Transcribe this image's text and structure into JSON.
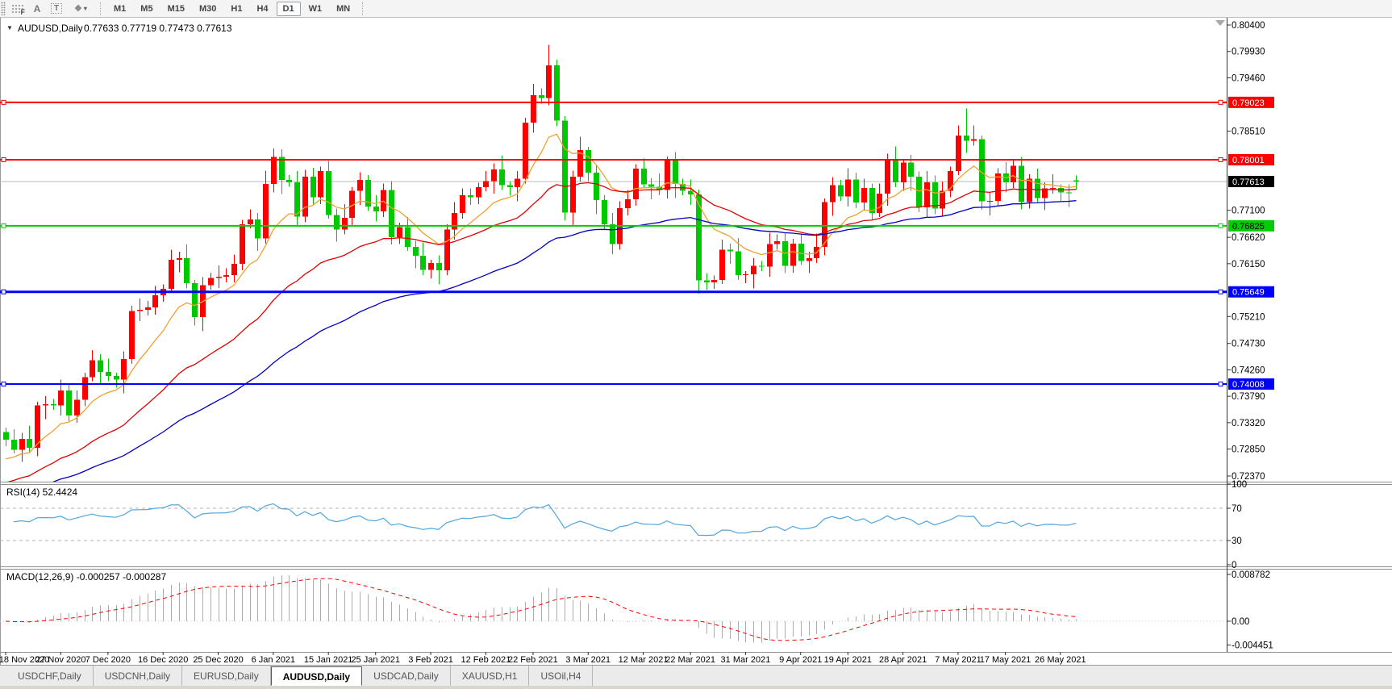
{
  "toolbar": {
    "tool_glyphs": {
      "fibonacci": "F",
      "text": "A",
      "text_label": "T",
      "arrows": "❖",
      "dropdown_caret": "▾"
    },
    "timeframes": [
      "M1",
      "M5",
      "M15",
      "M30",
      "H1",
      "H4",
      "D1",
      "W1",
      "MN"
    ],
    "active_timeframe": "D1"
  },
  "chart_header": {
    "collapse_glyph": "▼",
    "symbol": "AUDUSD,Daily",
    "ohlc": "0.77633 0.77719 0.77473 0.77613"
  },
  "chart_data": {
    "type": "candlestick",
    "symbol": "AUDUSD",
    "timeframe": "Daily",
    "bull_color": "#FF0000",
    "bear_color": "#00C800",
    "ylim": [
      0.7237,
      0.804
    ],
    "grid": false,
    "ohlc": [
      [
        0.7315,
        0.7323,
        0.729,
        0.7302
      ],
      [
        0.7302,
        0.732,
        0.7277,
        0.7284
      ],
      [
        0.7284,
        0.7314,
        0.7262,
        0.7303
      ],
      [
        0.7303,
        0.7327,
        0.7278,
        0.7287
      ],
      [
        0.7287,
        0.7369,
        0.7272,
        0.7363
      ],
      [
        0.7363,
        0.7379,
        0.7338,
        0.7365
      ],
      [
        0.7365,
        0.7374,
        0.7355,
        0.7363
      ],
      [
        0.7363,
        0.7409,
        0.7345,
        0.7389
      ],
      [
        0.7389,
        0.7401,
        0.7335,
        0.7345
      ],
      [
        0.7345,
        0.7389,
        0.7332,
        0.7373
      ],
      [
        0.7373,
        0.7421,
        0.7361,
        0.7413
      ],
      [
        0.7413,
        0.7461,
        0.7406,
        0.7443
      ],
      [
        0.7443,
        0.7454,
        0.74,
        0.7422
      ],
      [
        0.7422,
        0.7446,
        0.7406,
        0.7415
      ],
      [
        0.7415,
        0.7421,
        0.7394,
        0.7409
      ],
      [
        0.7409,
        0.7459,
        0.7384,
        0.7445
      ],
      [
        0.7445,
        0.754,
        0.7437,
        0.7531
      ],
      [
        0.7531,
        0.7553,
        0.7513,
        0.7533
      ],
      [
        0.7533,
        0.7549,
        0.7523,
        0.7537
      ],
      [
        0.7537,
        0.7575,
        0.7524,
        0.7559
      ],
      [
        0.7559,
        0.7578,
        0.7547,
        0.757
      ],
      [
        0.757,
        0.764,
        0.7563,
        0.7622
      ],
      [
        0.7622,
        0.7636,
        0.76,
        0.7625
      ],
      [
        0.7625,
        0.7649,
        0.7571,
        0.758
      ],
      [
        0.758,
        0.7586,
        0.7505,
        0.752
      ],
      [
        0.752,
        0.7591,
        0.7495,
        0.7577
      ],
      [
        0.7577,
        0.7599,
        0.7569,
        0.759
      ],
      [
        0.759,
        0.7612,
        0.7572,
        0.7592
      ],
      [
        0.7592,
        0.7607,
        0.7582,
        0.7595
      ],
      [
        0.7595,
        0.7631,
        0.7582,
        0.7615
      ],
      [
        0.7615,
        0.7693,
        0.7603,
        0.7685
      ],
      [
        0.7685,
        0.7712,
        0.7678,
        0.7694
      ],
      [
        0.7694,
        0.7705,
        0.7638,
        0.766
      ],
      [
        0.766,
        0.7781,
        0.7651,
        0.7757
      ],
      [
        0.7757,
        0.782,
        0.7742,
        0.7805
      ],
      [
        0.7805,
        0.7819,
        0.7739,
        0.7764
      ],
      [
        0.7764,
        0.7773,
        0.7752,
        0.776
      ],
      [
        0.776,
        0.778,
        0.7681,
        0.7699
      ],
      [
        0.7699,
        0.7782,
        0.7689,
        0.777
      ],
      [
        0.777,
        0.7786,
        0.772,
        0.7733
      ],
      [
        0.7733,
        0.7788,
        0.7721,
        0.778
      ],
      [
        0.778,
        0.7798,
        0.7695,
        0.7702
      ],
      [
        0.7702,
        0.7713,
        0.7654,
        0.7676
      ],
      [
        0.7676,
        0.7721,
        0.7667,
        0.7697
      ],
      [
        0.7697,
        0.7751,
        0.7682,
        0.7745
      ],
      [
        0.7745,
        0.7778,
        0.772,
        0.7764
      ],
      [
        0.7764,
        0.7773,
        0.7709,
        0.7717
      ],
      [
        0.7717,
        0.7737,
        0.769,
        0.7708
      ],
      [
        0.7708,
        0.7758,
        0.7698,
        0.7746
      ],
      [
        0.7746,
        0.7762,
        0.7649,
        0.7662
      ],
      [
        0.7662,
        0.7688,
        0.765,
        0.768
      ],
      [
        0.768,
        0.7698,
        0.7638,
        0.7645
      ],
      [
        0.7645,
        0.7656,
        0.7607,
        0.7629
      ],
      [
        0.7629,
        0.7653,
        0.7595,
        0.7604
      ],
      [
        0.7604,
        0.7622,
        0.7589,
        0.7616
      ],
      [
        0.7616,
        0.763,
        0.7578,
        0.7603
      ],
      [
        0.7603,
        0.7685,
        0.7595,
        0.7676
      ],
      [
        0.7676,
        0.7725,
        0.7658,
        0.7705
      ],
      [
        0.7705,
        0.7749,
        0.7695,
        0.7737
      ],
      [
        0.7737,
        0.7749,
        0.772,
        0.7733
      ],
      [
        0.7733,
        0.7759,
        0.7721,
        0.7751
      ],
      [
        0.7751,
        0.778,
        0.7744,
        0.7762
      ],
      [
        0.7762,
        0.7794,
        0.774,
        0.7783
      ],
      [
        0.7783,
        0.7807,
        0.7746,
        0.7755
      ],
      [
        0.7755,
        0.7761,
        0.7736,
        0.7751
      ],
      [
        0.7751,
        0.778,
        0.7726,
        0.7766
      ],
      [
        0.7766,
        0.7875,
        0.7758,
        0.7866
      ],
      [
        0.7866,
        0.7935,
        0.7848,
        0.7915
      ],
      [
        0.7915,
        0.7927,
        0.79,
        0.791
      ],
      [
        0.791,
        0.8005,
        0.7897,
        0.7968
      ],
      [
        0.7968,
        0.7978,
        0.786,
        0.787
      ],
      [
        0.787,
        0.7878,
        0.7692,
        0.7706
      ],
      [
        0.7706,
        0.7781,
        0.7684,
        0.777
      ],
      [
        0.777,
        0.7841,
        0.7761,
        0.7817
      ],
      [
        0.7817,
        0.7823,
        0.7762,
        0.7777
      ],
      [
        0.7777,
        0.7791,
        0.7703,
        0.7728
      ],
      [
        0.7728,
        0.7737,
        0.7677,
        0.7685
      ],
      [
        0.7685,
        0.7705,
        0.7632,
        0.765
      ],
      [
        0.765,
        0.7726,
        0.764,
        0.7714
      ],
      [
        0.7714,
        0.7746,
        0.7701,
        0.773
      ],
      [
        0.773,
        0.7792,
        0.7718,
        0.7784
      ],
      [
        0.7784,
        0.7802,
        0.7749,
        0.7756
      ],
      [
        0.7756,
        0.7767,
        0.773,
        0.7752
      ],
      [
        0.7752,
        0.7776,
        0.7737,
        0.7746
      ],
      [
        0.7746,
        0.7806,
        0.7731,
        0.78
      ],
      [
        0.78,
        0.7814,
        0.7732,
        0.7757
      ],
      [
        0.7757,
        0.7766,
        0.7737,
        0.7745
      ],
      [
        0.7745,
        0.7765,
        0.772,
        0.7738
      ],
      [
        0.7738,
        0.7747,
        0.7562,
        0.7585
      ],
      [
        0.7585,
        0.7598,
        0.7569,
        0.7582
      ],
      [
        0.7582,
        0.7594,
        0.757,
        0.7586
      ],
      [
        0.7586,
        0.7658,
        0.7579,
        0.764
      ],
      [
        0.764,
        0.7651,
        0.7615,
        0.7637
      ],
      [
        0.7637,
        0.7661,
        0.7586,
        0.7595
      ],
      [
        0.7595,
        0.7602,
        0.758,
        0.7596
      ],
      [
        0.7596,
        0.7625,
        0.7571,
        0.7611
      ],
      [
        0.7611,
        0.762,
        0.7602,
        0.761
      ],
      [
        0.761,
        0.767,
        0.7592,
        0.765
      ],
      [
        0.765,
        0.7667,
        0.764,
        0.7655
      ],
      [
        0.7655,
        0.7671,
        0.7598,
        0.7611
      ],
      [
        0.7611,
        0.7659,
        0.7599,
        0.7651
      ],
      [
        0.7651,
        0.7669,
        0.7613,
        0.762
      ],
      [
        0.762,
        0.7636,
        0.7598,
        0.7625
      ],
      [
        0.7625,
        0.7669,
        0.7616,
        0.7645
      ],
      [
        0.7645,
        0.7731,
        0.763,
        0.7725
      ],
      [
        0.7725,
        0.7769,
        0.77,
        0.7755
      ],
      [
        0.7755,
        0.7764,
        0.7727,
        0.7735
      ],
      [
        0.7735,
        0.7785,
        0.7717,
        0.7765
      ],
      [
        0.7765,
        0.7777,
        0.7714,
        0.7724
      ],
      [
        0.7724,
        0.7766,
        0.7711,
        0.775
      ],
      [
        0.775,
        0.7758,
        0.7693,
        0.7705
      ],
      [
        0.7705,
        0.7758,
        0.7698,
        0.774
      ],
      [
        0.774,
        0.7811,
        0.7718,
        0.78
      ],
      [
        0.78,
        0.7824,
        0.7751,
        0.776
      ],
      [
        0.776,
        0.7801,
        0.7745,
        0.7795
      ],
      [
        0.7795,
        0.7809,
        0.7745,
        0.777
      ],
      [
        0.777,
        0.7779,
        0.7707,
        0.7715
      ],
      [
        0.7715,
        0.778,
        0.7697,
        0.776
      ],
      [
        0.776,
        0.7772,
        0.7703,
        0.7713
      ],
      [
        0.7713,
        0.7761,
        0.77,
        0.7745
      ],
      [
        0.7745,
        0.7788,
        0.7733,
        0.778
      ],
      [
        0.778,
        0.7861,
        0.7773,
        0.7843
      ],
      [
        0.7843,
        0.7891,
        0.7812,
        0.7834
      ],
      [
        0.7834,
        0.7861,
        0.7825,
        0.7837
      ],
      [
        0.7837,
        0.7843,
        0.7711,
        0.7726
      ],
      [
        0.7726,
        0.7741,
        0.7701,
        0.7727
      ],
      [
        0.7727,
        0.7785,
        0.7719,
        0.7776
      ],
      [
        0.7776,
        0.7796,
        0.7742,
        0.776
      ],
      [
        0.776,
        0.7801,
        0.775,
        0.7789
      ],
      [
        0.7789,
        0.7805,
        0.7712,
        0.7725
      ],
      [
        0.7725,
        0.7774,
        0.7713,
        0.7766
      ],
      [
        0.7766,
        0.7784,
        0.7725,
        0.7732
      ],
      [
        0.7732,
        0.776,
        0.771,
        0.7749
      ],
      [
        0.7749,
        0.7774,
        0.774,
        0.775
      ],
      [
        0.775,
        0.7756,
        0.7727,
        0.7742
      ],
      [
        0.7742,
        0.7756,
        0.7716,
        0.7741
      ],
      [
        0.77633,
        0.77719,
        0.77473,
        0.77613
      ]
    ],
    "price_axis": {
      "ticks": [
        "0.80400",
        "0.79930",
        "0.79460",
        "0.78510",
        "0.77100",
        "0.76620",
        "0.76150",
        "0.75210",
        "0.74730",
        "0.74260",
        "0.73790",
        "0.73320",
        "0.72850",
        "0.72370"
      ]
    },
    "time_axis": {
      "ticks": [
        {
          "i": 0,
          "label": "18 Nov 2020"
        },
        {
          "i": 7,
          "label": "27 Nov 2020"
        },
        {
          "i": 13,
          "label": "7 Dec 2020"
        },
        {
          "i": 20,
          "label": "16 Dec 2020"
        },
        {
          "i": 27,
          "label": "25 Dec 2020"
        },
        {
          "i": 34,
          "label": "6 Jan 2021"
        },
        {
          "i": 41,
          "label": "15 Jan 2021"
        },
        {
          "i": 47,
          "label": "25 Jan 2021"
        },
        {
          "i": 54,
          "label": "3 Feb 2021"
        },
        {
          "i": 61,
          "label": "12 Feb 2021"
        },
        {
          "i": 67,
          "label": "22 Feb 2021"
        },
        {
          "i": 74,
          "label": "3 Mar 2021"
        },
        {
          "i": 81,
          "label": "12 Mar 2021"
        },
        {
          "i": 87,
          "label": "22 Mar 2021"
        },
        {
          "i": 94,
          "label": "31 Mar 2021"
        },
        {
          "i": 101,
          "label": "9 Apr 2021"
        },
        {
          "i": 107,
          "label": "19 Apr 2021"
        },
        {
          "i": 114,
          "label": "28 Apr 2021"
        },
        {
          "i": 121,
          "label": "7 May 2021"
        },
        {
          "i": 127,
          "label": "17 May 2021"
        },
        {
          "i": 134,
          "label": "26 May 2021"
        }
      ]
    },
    "hlines": [
      {
        "price": 0.79023,
        "label": "0.79023",
        "color": "#FF0000",
        "text_color": "#FFFFFF",
        "width": 2
      },
      {
        "price": 0.78001,
        "label": "0.78001",
        "color": "#FF0000",
        "text_color": "#FFFFFF",
        "width": 2
      },
      {
        "price": 0.76825,
        "label": "0.76825",
        "color": "#00CC00",
        "text_color": "#000000",
        "width": 2
      },
      {
        "price": 0.75649,
        "label": "0.75649",
        "color": "#0000FF",
        "text_color": "#FFFFFF",
        "width": 3
      },
      {
        "price": 0.74008,
        "label": "0.74008",
        "color": "#0000FF",
        "text_color": "#FFFFFF",
        "width": 2
      }
    ],
    "current_price": {
      "value": 0.77613,
      "label": "0.77613",
      "line_color": "#BBBBBB",
      "plate_color": "#000000",
      "text_color": "#FFFFFF"
    },
    "moving_averages": [
      {
        "period": 10,
        "color": "#F0A030",
        "seed": 0.726
      },
      {
        "period": 30,
        "color": "#E00000",
        "seed": 0.722
      },
      {
        "period": 60,
        "color": "#0000C0",
        "seed": 0.72
      }
    ]
  },
  "rsi": {
    "label_text": "RSI(14) 52.4424",
    "period": 14,
    "color": "#4DA6E0",
    "levels": [
      70,
      30
    ],
    "axis_labels": [
      {
        "v": 100,
        "t": "100"
      },
      {
        "v": 70,
        "t": "70"
      },
      {
        "v": 30,
        "t": "30"
      },
      {
        "v": 0,
        "t": "0"
      }
    ]
  },
  "macd": {
    "label_text": "MACD(12,26,9) -0.000257 -0.000287",
    "fast": 12,
    "slow": 26,
    "signal": 9,
    "bar_color": "#ABABAB",
    "signal_color": "#FF0000",
    "axis_labels": [
      {
        "v": 0.008782,
        "t": "0.008782"
      },
      {
        "v": 0,
        "t": "0.00"
      },
      {
        "v": -0.004451,
        "t": "-0.004451"
      }
    ]
  },
  "tabs": [
    {
      "label": "USDCHF,Daily",
      "active": false
    },
    {
      "label": "USDCNH,Daily",
      "active": false
    },
    {
      "label": "EURUSD,Daily",
      "active": false
    },
    {
      "label": "AUDUSD,Daily",
      "active": true
    },
    {
      "label": "USDCAD,Daily",
      "active": false
    },
    {
      "label": "XAUUSD,H1",
      "active": false
    },
    {
      "label": "USOil,H4",
      "active": false
    }
  ]
}
